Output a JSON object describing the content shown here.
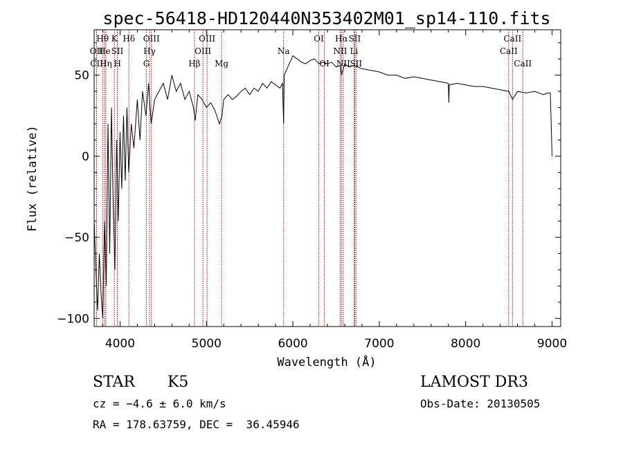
{
  "chart_data": {
    "type": "line",
    "title": "spec-56418-HD120440N353402M01_sp14-110.fits",
    "xlabel": "Wavelength (Å)",
    "ylabel": "Flux (relative)",
    "xlim": [
      3700,
      9100
    ],
    "ylim": [
      -105,
      78
    ],
    "xticks": [
      4000,
      5000,
      6000,
      7000,
      8000,
      9000
    ],
    "xtick_labels": [
      "4000",
      "5000",
      "6000",
      "7000",
      "8000",
      "9000"
    ],
    "yticks": [
      -100,
      -50,
      0,
      50
    ],
    "ytick_labels": [
      "−100",
      "−50",
      "0",
      "50"
    ],
    "grid": false,
    "legend": "none",
    "spectrum_color": "#000000",
    "line_marker_color": "#c00000",
    "spectrum": {
      "x": [
        3700,
        3720,
        3740,
        3760,
        3780,
        3800,
        3820,
        3840,
        3860,
        3880,
        3900,
        3920,
        3940,
        3960,
        3980,
        4000,
        4020,
        4040,
        4060,
        4080,
        4100,
        4130,
        4160,
        4200,
        4230,
        4260,
        4300,
        4330,
        4360,
        4400,
        4450,
        4500,
        4550,
        4600,
        4650,
        4700,
        4750,
        4800,
        4850,
        4870,
        4900,
        4950,
        5000,
        5050,
        5100,
        5150,
        5180,
        5200,
        5250,
        5300,
        5350,
        5400,
        5450,
        5500,
        5550,
        5600,
        5650,
        5700,
        5750,
        5800,
        5850,
        5880,
        5893,
        5900,
        5950,
        6000,
        6050,
        6100,
        6150,
        6200,
        6250,
        6300,
        6350,
        6400,
        6450,
        6500,
        6550,
        6563,
        6600,
        6650,
        6700,
        6750,
        6800,
        6900,
        7000,
        7100,
        7200,
        7300,
        7400,
        7500,
        7600,
        7700,
        7800,
        7805,
        7810,
        7900,
        8000,
        8100,
        8200,
        8300,
        8400,
        8500,
        8542,
        8600,
        8700,
        8800,
        8900,
        8950,
        8980,
        8990,
        9000
      ],
      "y": [
        -40,
        -70,
        -95,
        -60,
        -85,
        -100,
        -40,
        -80,
        20,
        -60,
        30,
        -30,
        -70,
        10,
        -40,
        15,
        -20,
        25,
        -15,
        30,
        -10,
        20,
        5,
        35,
        10,
        40,
        25,
        45,
        20,
        35,
        40,
        45,
        35,
        50,
        40,
        45,
        35,
        40,
        30,
        22,
        38,
        35,
        30,
        33,
        28,
        20,
        25,
        35,
        38,
        35,
        37,
        40,
        42,
        38,
        42,
        40,
        45,
        42,
        46,
        44,
        42,
        45,
        20,
        50,
        56,
        62,
        60,
        58,
        57,
        59,
        60,
        57,
        58,
        57,
        58,
        55,
        56,
        50,
        57,
        55,
        56,
        55,
        54,
        53,
        52,
        50,
        50,
        48,
        49,
        48,
        47,
        46,
        45,
        33,
        44,
        45,
        44,
        43,
        43,
        42,
        41,
        40,
        35,
        40,
        39,
        40,
        38,
        39,
        39,
        20,
        0
      ]
    },
    "lines": [
      {
        "label": "Hθ",
        "wavelength": 3798,
        "row": 0
      },
      {
        "label": "OII",
        "wavelength": 3727,
        "row": 1
      },
      {
        "label": "CII",
        "wavelength": 3729,
        "row": 2
      },
      {
        "label": "He",
        "wavelength": 3820,
        "row": 1
      },
      {
        "label": "Hη",
        "wavelength": 3835,
        "row": 2
      },
      {
        "label": "K",
        "wavelength": 3934,
        "row": 0
      },
      {
        "label": "SII",
        "wavelength": 3968,
        "row": 1
      },
      {
        "label": "H",
        "wavelength": 3970,
        "row": 2
      },
      {
        "label": "Hδ",
        "wavelength": 4102,
        "row": 0
      },
      {
        "label": "OIII",
        "wavelength": 4363,
        "row": 0
      },
      {
        "label": "Hγ",
        "wavelength": 4341,
        "row": 1
      },
      {
        "label": "G",
        "wavelength": 4305,
        "row": 2
      },
      {
        "label": "Hβ",
        "wavelength": 4861,
        "row": 2
      },
      {
        "label": "OIII",
        "wavelength": 5007,
        "row": 0
      },
      {
        "label": "OIII",
        "wavelength": 4959,
        "row": 1
      },
      {
        "label": "Mg",
        "wavelength": 5175,
        "row": 2
      },
      {
        "label": "Na",
        "wavelength": 5893,
        "row": 1
      },
      {
        "label": "OI",
        "wavelength": 6300,
        "row": 0
      },
      {
        "label": "OI",
        "wavelength": 6364,
        "row": 2
      },
      {
        "label": "Hα",
        "wavelength": 6563,
        "row": 0
      },
      {
        "label": "SII",
        "wavelength": 6716,
        "row": 0
      },
      {
        "label": "NII",
        "wavelength": 6548,
        "row": 1
      },
      {
        "label": "Li",
        "wavelength": 6708,
        "row": 1
      },
      {
        "label": "NII",
        "wavelength": 6583,
        "row": 2
      },
      {
        "label": "SII",
        "wavelength": 6731,
        "row": 2
      },
      {
        "label": "CaII",
        "wavelength": 8542,
        "row": 0
      },
      {
        "label": "CaII",
        "wavelength": 8498,
        "row": 1
      },
      {
        "label": "CaII",
        "wavelength": 8662,
        "row": 2
      }
    ]
  },
  "info": {
    "class": "STAR",
    "subclass": "K5",
    "cz": "cz = −4.6 ± 6.0 km/s",
    "radec": "RA = 178.63759, DEC =  36.45946",
    "survey": "LAMOST DR3",
    "obsdate": "Obs-Date: 20130505"
  }
}
